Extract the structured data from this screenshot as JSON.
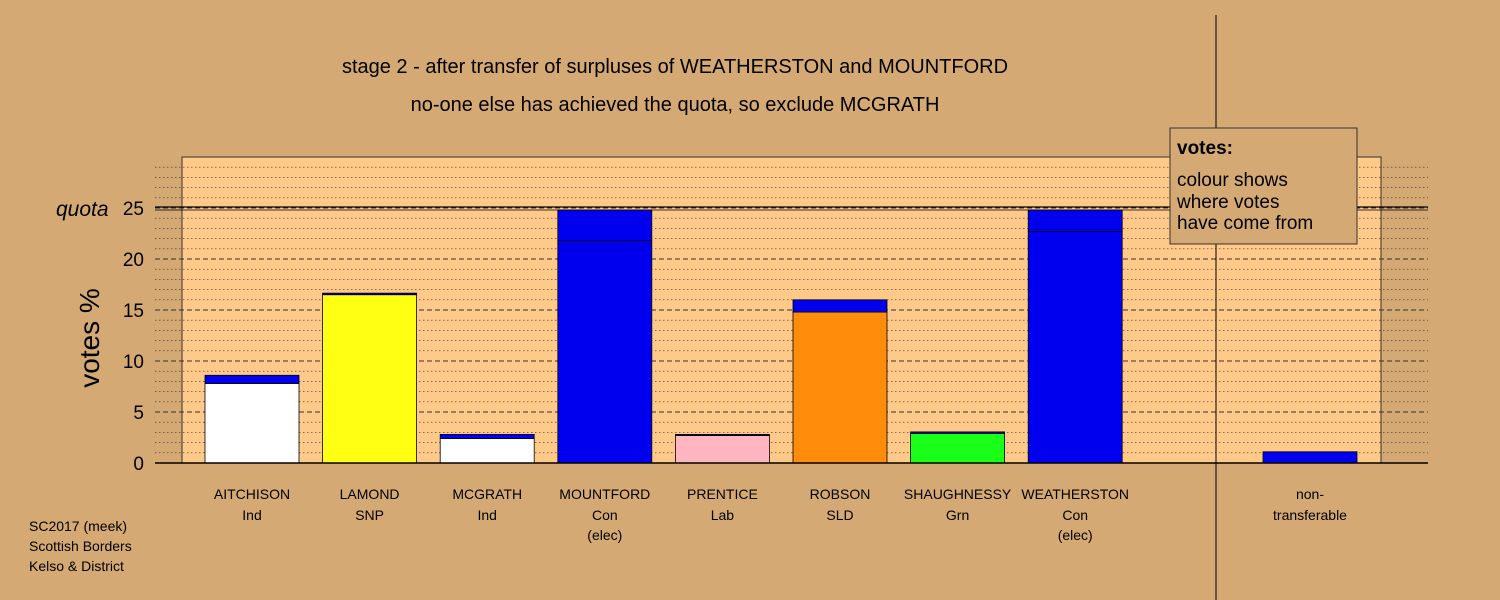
{
  "chart_data": {
    "type": "bar",
    "title": "stage 2 - after transfer of surpluses of WEATHERSTON and MOUNTFORD",
    "subtitle": "no-one else has achieved the quota, so exclude MCGRATH",
    "ylabel": "votes %",
    "ylim": [
      0,
      29
    ],
    "yticks": [
      0,
      5,
      10,
      15,
      20,
      25
    ],
    "quota": 25,
    "quota_label": "quota",
    "categories": [
      {
        "name": "AITCHISON",
        "party": "Ind",
        "note": ""
      },
      {
        "name": "LAMOND",
        "party": "SNP",
        "note": ""
      },
      {
        "name": "MCGRATH",
        "party": "Ind",
        "note": ""
      },
      {
        "name": "MOUNTFORD",
        "party": "Con",
        "note": "(elec)"
      },
      {
        "name": "PRENTICE",
        "party": "Lab",
        "note": ""
      },
      {
        "name": "ROBSON",
        "party": "SLD",
        "note": ""
      },
      {
        "name": "SHAUGHNESSY",
        "party": "Grn",
        "note": ""
      },
      {
        "name": "WEATHERSTON",
        "party": "Con",
        "note": "(elec)"
      }
    ],
    "bars": [
      {
        "own": 7.8,
        "own_color": "#ffffff",
        "transfer": 0.8,
        "transfer_color": "#0000ee"
      },
      {
        "own": 16.5,
        "own_color": "#ffff14",
        "transfer": 0.15,
        "transfer_color": "#0000ee"
      },
      {
        "own": 2.4,
        "own_color": "#ffffff",
        "transfer": 0.4,
        "transfer_color": "#0000ee"
      },
      {
        "own": 21.8,
        "own_color": "#0000ee",
        "transfer": 3.0,
        "transfer_color": "#0000ee"
      },
      {
        "own": 2.7,
        "own_color": "#ffb6c1",
        "transfer": 0.1,
        "transfer_color": "#0000ee"
      },
      {
        "own": 14.8,
        "own_color": "#ff8c0a",
        "transfer": 1.2,
        "transfer_color": "#0000ee"
      },
      {
        "own": 2.9,
        "own_color": "#1aff1a",
        "transfer": 0.15,
        "transfer_color": "#0000ee"
      },
      {
        "own": 22.7,
        "own_color": "#0000ee",
        "transfer": 2.1,
        "transfer_color": "#0000ee"
      }
    ],
    "nontransferable": {
      "line1": "non-",
      "line2": "transferable",
      "value": 1.1,
      "color": "#0000ee"
    },
    "legend": {
      "title": "votes:",
      "lines": [
        "colour shows",
        "where votes",
        "have come from"
      ],
      "placement": "top-right"
    },
    "colors": {
      "background": "#d4a973",
      "plot": "#ffc98a"
    }
  },
  "footer": [
    "SC2017 (meek)",
    "Scottish Borders",
    "Kelso & District"
  ]
}
